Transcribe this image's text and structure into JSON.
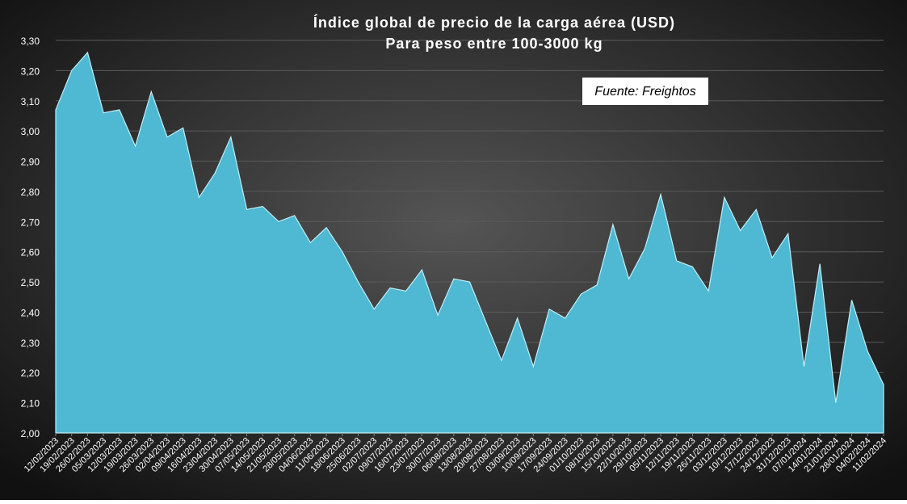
{
  "chart_data": {
    "type": "area",
    "title": "Índice global de precio de la carga aérea (USD)",
    "subtitle": "Para peso entre 100-3000 kg",
    "annotation": "Fuente: Freightos",
    "color": "#4fb8d2",
    "categories": [
      "12/02/2023",
      "19/02/2023",
      "26/02/2023",
      "05/03/2023",
      "12/03/2023",
      "19/03/2023",
      "26/03/2023",
      "02/04/2023",
      "09/04/2023",
      "16/04/2023",
      "23/04/2023",
      "30/04/2023",
      "07/05/2023",
      "14/05/2023",
      "21/05/2023",
      "28/05/2023",
      "04/06/2023",
      "11/06/2023",
      "18/06/2023",
      "25/06/2023",
      "02/07/2023",
      "09/07/2023",
      "16/07/2023",
      "23/07/2023",
      "30/07/2023",
      "06/08/2023",
      "13/08/2023",
      "20/08/2023",
      "27/08/2023",
      "03/09/2023",
      "10/09/2023",
      "17/09/2023",
      "24/09/2023",
      "01/10/2023",
      "08/10/2023",
      "15/10/2023",
      "22/10/2023",
      "29/10/2023",
      "05/11/2023",
      "12/11/2023",
      "19/11/2023",
      "26/11/2023",
      "03/12/2023",
      "10/12/2023",
      "17/12/2023",
      "24/12/2023",
      "31/12/2023",
      "07/01/2024",
      "14/01/2024",
      "21/01/2024",
      "28/01/2024",
      "04/02/2024",
      "11/02/2024"
    ],
    "values": [
      3.07,
      3.2,
      3.26,
      3.06,
      3.07,
      2.95,
      3.13,
      2.98,
      3.01,
      2.78,
      2.86,
      2.98,
      2.74,
      2.75,
      2.7,
      2.72,
      2.63,
      2.68,
      2.6,
      2.5,
      2.41,
      2.48,
      2.47,
      2.54,
      2.39,
      2.51,
      2.5,
      2.37,
      2.24,
      2.38,
      2.22,
      2.41,
      2.38,
      2.46,
      2.49,
      2.69,
      2.51,
      2.61,
      2.79,
      2.57,
      2.55,
      2.47,
      2.78,
      2.67,
      2.74,
      2.58,
      2.66,
      2.22,
      2.56,
      2.1,
      2.44,
      2.27,
      2.16
    ],
    "ylim": [
      2.0,
      3.3
    ],
    "yticks": [
      {
        "value": 2.0,
        "label": "2,00"
      },
      {
        "value": 2.1,
        "label": "2,10"
      },
      {
        "value": 2.2,
        "label": "2,20"
      },
      {
        "value": 2.3,
        "label": "2,30"
      },
      {
        "value": 2.4,
        "label": "2,40"
      },
      {
        "value": 2.5,
        "label": "2,50"
      },
      {
        "value": 2.6,
        "label": "2,60"
      },
      {
        "value": 2.7,
        "label": "2,70"
      },
      {
        "value": 2.8,
        "label": "2,80"
      },
      {
        "value": 2.9,
        "label": "2,90"
      },
      {
        "value": 3.0,
        "label": "3,00"
      },
      {
        "value": 3.1,
        "label": "3,10"
      },
      {
        "value": 3.2,
        "label": "3,20"
      },
      {
        "value": 3.3,
        "label": "3,30"
      }
    ],
    "grid": true
  }
}
